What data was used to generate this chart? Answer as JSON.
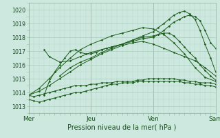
{
  "xlabel": "Pression niveau de la mer( hPa )",
  "ylim": [
    1012.5,
    1020.5
  ],
  "xlim": [
    0,
    3.0
  ],
  "yticks": [
    1013,
    1014,
    1015,
    1016,
    1017,
    1018,
    1019,
    1020
  ],
  "xtick_labels": [
    "Mer",
    "Jeu",
    "Ven",
    "Sam"
  ],
  "xtick_positions": [
    0,
    1,
    2,
    3
  ],
  "bg_color": "#cde8de",
  "grid_color_major": "#a8ccbe",
  "grid_color_minor": "#b8d8cc",
  "line_color": "#1a5c1a",
  "series": [
    {
      "x": [
        0.0,
        0.08,
        0.17,
        0.25,
        0.33,
        0.42,
        0.5,
        0.58,
        0.67,
        0.75,
        0.83,
        0.92,
        1.0,
        1.08,
        1.17,
        1.25,
        1.33,
        1.42,
        1.5,
        1.58,
        1.67,
        1.75,
        1.83,
        1.92,
        2.0,
        2.08,
        2.17,
        2.25,
        2.33,
        2.42,
        2.5,
        2.58,
        2.67,
        2.75,
        2.83,
        2.92,
        3.0
      ],
      "y": [
        1013.8,
        1013.7,
        1013.8,
        1013.9,
        1014.0,
        1014.1,
        1014.2,
        1014.3,
        1014.4,
        1014.5,
        1014.5,
        1014.5,
        1014.6,
        1014.6,
        1014.7,
        1014.7,
        1014.7,
        1014.8,
        1014.8,
        1014.8,
        1014.8,
        1014.9,
        1014.9,
        1015.0,
        1015.0,
        1015.0,
        1015.0,
        1015.0,
        1015.0,
        1014.9,
        1014.9,
        1014.8,
        1014.8,
        1014.7,
        1014.7,
        1014.7,
        1014.6
      ]
    },
    {
      "x": [
        0.0,
        0.08,
        0.17,
        0.25,
        0.33,
        0.42,
        0.5,
        0.58,
        0.67,
        0.75,
        0.83,
        0.92,
        1.0,
        1.08,
        1.17,
        1.25,
        1.33,
        1.42,
        1.5,
        1.58,
        1.67,
        1.75,
        1.83,
        1.92,
        2.0,
        2.08,
        2.17,
        2.25,
        2.33,
        2.42,
        2.5,
        2.58,
        2.67,
        2.75,
        2.83,
        2.92,
        3.0
      ],
      "y": [
        1013.5,
        1013.4,
        1013.3,
        1013.4,
        1013.5,
        1013.6,
        1013.7,
        1013.8,
        1013.9,
        1014.0,
        1014.0,
        1014.1,
        1014.2,
        1014.3,
        1014.4,
        1014.5,
        1014.6,
        1014.6,
        1014.7,
        1014.7,
        1014.7,
        1014.8,
        1014.8,
        1014.8,
        1014.8,
        1014.8,
        1014.8,
        1014.8,
        1014.8,
        1014.8,
        1014.7,
        1014.7,
        1014.6,
        1014.6,
        1014.5,
        1014.5,
        1014.4
      ]
    },
    {
      "x": [
        0.0,
        0.17,
        0.33,
        0.5,
        0.67,
        0.83,
        1.0,
        1.17,
        1.33,
        1.5,
        1.67,
        1.83,
        2.0,
        2.17,
        2.33,
        2.5,
        2.67,
        2.83,
        3.0
      ],
      "y": [
        1013.8,
        1014.1,
        1014.5,
        1015.0,
        1015.5,
        1016.0,
        1016.4,
        1016.8,
        1017.1,
        1017.4,
        1017.6,
        1017.7,
        1017.5,
        1017.2,
        1016.9,
        1016.6,
        1016.3,
        1015.8,
        1015.2
      ]
    },
    {
      "x": [
        0.0,
        0.17,
        0.33,
        0.5,
        0.67,
        0.83,
        1.0,
        1.17,
        1.33,
        1.5,
        1.67,
        1.83,
        2.0,
        2.17,
        2.33,
        2.5,
        2.67,
        2.83,
        3.0
      ],
      "y": [
        1013.8,
        1014.3,
        1015.0,
        1015.8,
        1016.5,
        1017.1,
        1017.5,
        1017.8,
        1018.1,
        1018.3,
        1018.5,
        1018.7,
        1018.6,
        1018.2,
        1017.6,
        1016.8,
        1015.8,
        1015.1,
        1014.8
      ]
    },
    {
      "x": [
        0.25,
        0.33,
        0.42,
        0.5,
        0.58,
        0.67,
        0.75,
        0.83,
        0.92,
        1.0,
        1.08,
        1.17,
        1.25,
        1.33,
        1.5,
        1.67,
        1.83,
        2.0,
        2.08,
        2.17,
        2.25,
        2.33,
        2.42,
        2.5,
        2.58,
        2.67,
        2.75,
        2.83,
        2.92,
        3.0
      ],
      "y": [
        1013.8,
        1014.8,
        1015.5,
        1016.0,
        1016.5,
        1017.0,
        1017.1,
        1016.9,
        1016.8,
        1016.8,
        1016.9,
        1017.1,
        1017.2,
        1017.3,
        1017.5,
        1017.8,
        1018.0,
        1018.1,
        1018.2,
        1018.3,
        1018.3,
        1018.1,
        1017.7,
        1017.3,
        1016.9,
        1016.5,
        1016.0,
        1015.6,
        1015.2,
        1014.9
      ]
    },
    {
      "x": [
        0.25,
        0.33,
        0.5,
        0.67,
        0.83,
        1.0,
        1.17,
        1.33,
        1.5,
        1.67,
        1.83,
        2.0,
        2.08,
        2.17,
        2.25,
        2.33,
        2.42,
        2.5,
        2.58,
        2.67,
        2.75,
        2.83,
        2.92,
        3.0
      ],
      "y": [
        1017.1,
        1016.6,
        1016.2,
        1016.3,
        1016.6,
        1016.9,
        1017.1,
        1017.3,
        1017.5,
        1017.7,
        1017.9,
        1018.0,
        1018.2,
        1018.5,
        1018.8,
        1019.1,
        1019.3,
        1019.5,
        1019.6,
        1019.5,
        1019.2,
        1018.5,
        1017.6,
        1017.2
      ]
    },
    {
      "x": [
        0.5,
        0.67,
        0.83,
        1.0,
        1.17,
        1.33,
        1.5,
        1.67,
        1.83,
        2.0,
        2.08,
        2.17,
        2.25,
        2.33,
        2.42,
        2.5,
        2.58,
        2.67,
        2.75,
        2.83,
        2.92,
        3.0
      ],
      "y": [
        1015.2,
        1015.8,
        1016.2,
        1016.5,
        1016.9,
        1017.2,
        1017.5,
        1017.8,
        1018.1,
        1018.4,
        1018.7,
        1019.0,
        1019.3,
        1019.6,
        1019.8,
        1019.9,
        1019.7,
        1019.3,
        1018.5,
        1017.5,
        1016.5,
        1015.5
      ]
    }
  ]
}
